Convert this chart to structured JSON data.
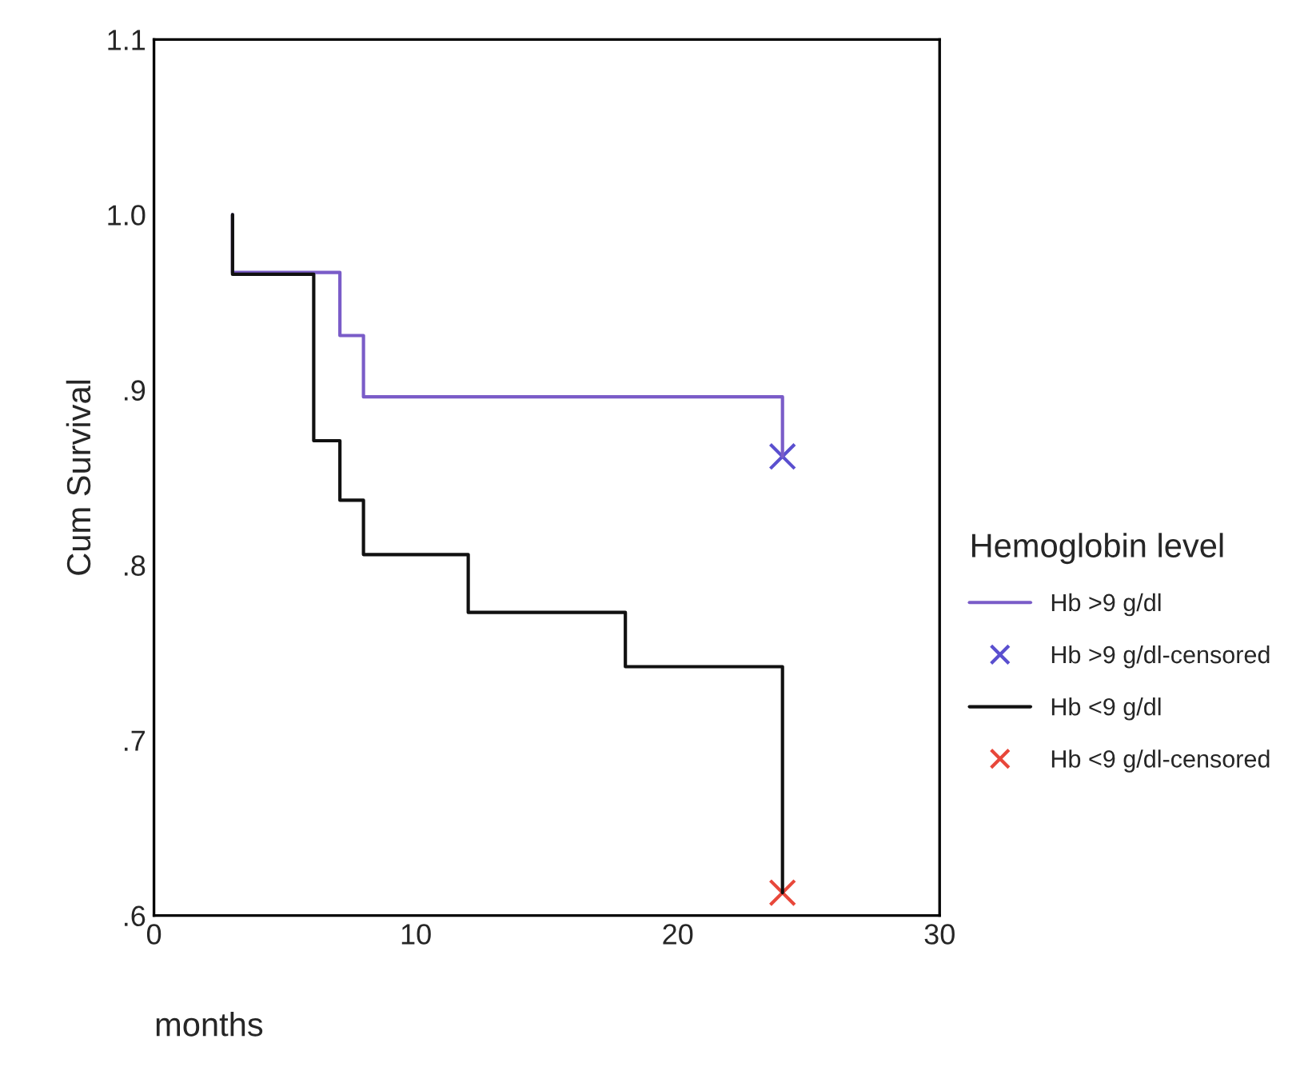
{
  "chart_data": {
    "type": "step",
    "xlabel": "months",
    "ylabel": "Cum Survival",
    "legend_title": "Hemoglobin level",
    "xlim": [
      0,
      30
    ],
    "xticks": [
      0,
      10,
      20,
      30
    ],
    "ylim": [
      0.6,
      1.1
    ],
    "yticks": [
      {
        "value": 0.6,
        "label": ".6"
      },
      {
        "value": 0.7,
        "label": ".7"
      },
      {
        "value": 0.8,
        "label": ".8"
      },
      {
        "value": 0.9,
        "label": ".9"
      },
      {
        "value": 1.0,
        "label": "1.0"
      },
      {
        "value": 1.1,
        "label": "1.1"
      }
    ],
    "grid": false,
    "legend": "right",
    "series": [
      {
        "name": "Hb >9 g/dl",
        "color": "#7a5cc8",
        "x": [
          3,
          3,
          7.1,
          8,
          24
        ],
        "values": [
          1.0,
          0.967,
          0.931,
          0.896,
          0.862
        ]
      },
      {
        "name": "Hb >9 g/dl-censored",
        "type": "scatter",
        "marker": "cross",
        "color": "#5a4fcf",
        "x": [
          24
        ],
        "values": [
          0.862
        ]
      },
      {
        "name": "Hb <9 g/dl",
        "color": "#111111",
        "x": [
          3,
          3,
          6.1,
          7.1,
          8,
          12,
          18,
          24
        ],
        "values": [
          1.0,
          0.966,
          0.871,
          0.837,
          0.806,
          0.773,
          0.742,
          0.613
        ]
      },
      {
        "name": "Hb <9 g/dl-censored",
        "type": "scatter",
        "marker": "cross",
        "color": "#e8473a",
        "x": [
          24
        ],
        "values": [
          0.613
        ]
      }
    ]
  }
}
